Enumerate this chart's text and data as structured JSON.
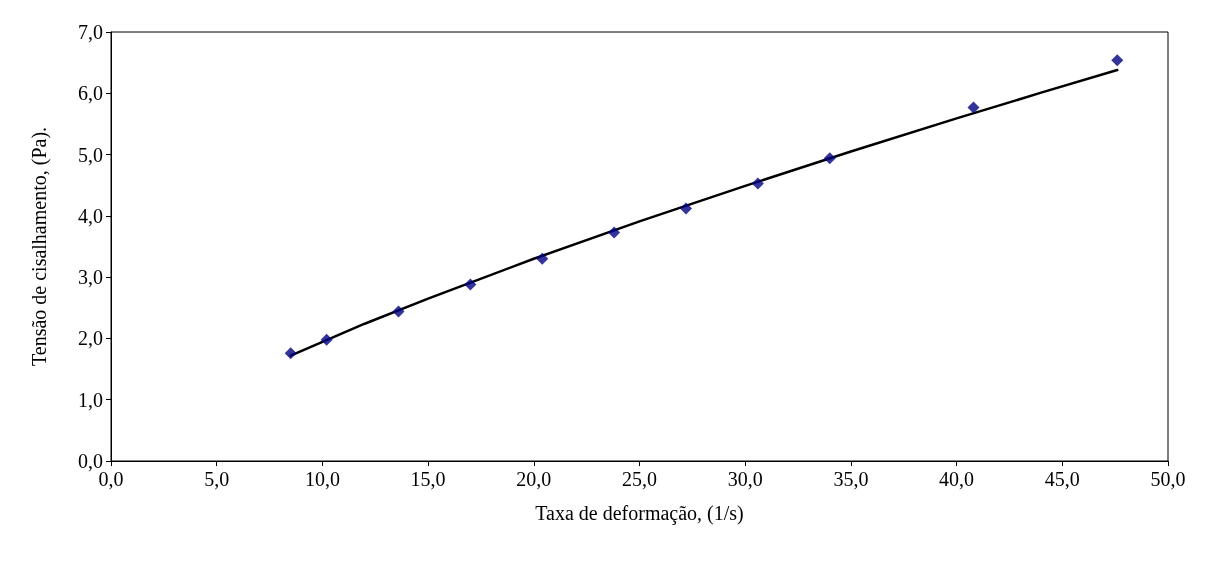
{
  "chart_data": {
    "type": "scatter",
    "xlabel": "Taxa de deformação, (1/s)",
    "ylabel": "Tensão de cisalhamento, (Pa).",
    "xlim": [
      0,
      50
    ],
    "ylim": [
      0,
      7
    ],
    "xticks": [
      {
        "value": 0,
        "label": "0,0"
      },
      {
        "value": 5,
        "label": "5,0"
      },
      {
        "value": 10,
        "label": "10,0"
      },
      {
        "value": 15,
        "label": "15,0"
      },
      {
        "value": 20,
        "label": "20,0"
      },
      {
        "value": 25,
        "label": "25,0"
      },
      {
        "value": 30,
        "label": "30,0"
      },
      {
        "value": 35,
        "label": "35,0"
      },
      {
        "value": 40,
        "label": "40,0"
      },
      {
        "value": 45,
        "label": "45,0"
      },
      {
        "value": 50,
        "label": "50,0"
      }
    ],
    "yticks": [
      {
        "value": 0,
        "label": "0,0"
      },
      {
        "value": 1,
        "label": "1,0"
      },
      {
        "value": 2,
        "label": "2,0"
      },
      {
        "value": 3,
        "label": "3,0"
      },
      {
        "value": 4,
        "label": "4,0"
      },
      {
        "value": 5,
        "label": "5,0"
      },
      {
        "value": 6,
        "label": "6,0"
      },
      {
        "value": 7,
        "label": "7,0"
      }
    ],
    "grid": false,
    "series": [
      {
        "marker": "diamond",
        "color": "#000080",
        "x": [
          8.5,
          10.2,
          13.6,
          17.0,
          20.4,
          23.8,
          27.2,
          30.6,
          34.0,
          40.8,
          47.6
        ],
        "values": [
          1.76,
          1.98,
          2.44,
          2.88,
          3.3,
          3.73,
          4.12,
          4.53,
          4.94,
          5.77,
          6.54
        ]
      },
      {
        "type": "line",
        "marker": "none",
        "color": "#000000",
        "x": [
          8.5,
          12,
          15,
          20,
          25,
          30,
          35,
          40,
          44,
          47.6
        ],
        "values": [
          1.72,
          2.24,
          2.65,
          3.3,
          3.91,
          4.49,
          5.05,
          5.59,
          6.01,
          6.38
        ]
      }
    ]
  }
}
